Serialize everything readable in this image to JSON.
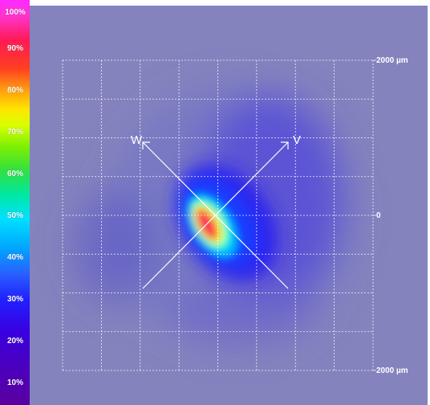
{
  "colorbar": {
    "labels": [
      "100%",
      "90%",
      "80%",
      "70%",
      "60%",
      "50%",
      "40%",
      "30%",
      "20%",
      "10%"
    ]
  },
  "plot": {
    "background": "#8483be",
    "grid_color": "#ffffff",
    "scale": {
      "top": "2000 µm",
      "middle": "0",
      "bottom": "2000 µm"
    },
    "axes": {
      "w_label": "W",
      "v_label": "V"
    }
  }
}
